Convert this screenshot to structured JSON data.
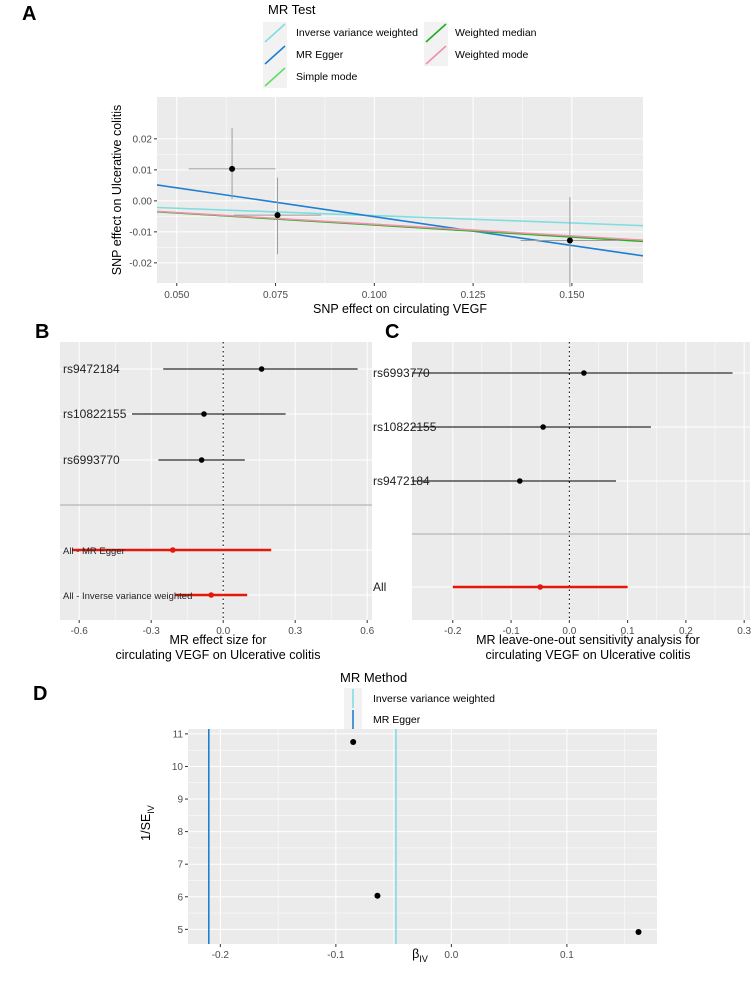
{
  "panels": {
    "A": {
      "letter": "A"
    },
    "B": {
      "letter": "B"
    },
    "C": {
      "letter": "C"
    },
    "D": {
      "letter": "D"
    }
  },
  "chart_data": [
    {
      "panel": "A",
      "type": "scatter",
      "title": "",
      "xlabel": "SNP effect on  circulating VEGF",
      "ylabel": "SNP effect on Ulcerative colitis",
      "xlim": [
        0.045,
        0.168
      ],
      "ylim": [
        -0.0265,
        0.0335
      ],
      "xticks": [
        0.05,
        0.075,
        0.1,
        0.125,
        0.15
      ],
      "xtick_labels": [
        "0.050",
        "0.075",
        "0.100",
        "0.125",
        "0.150"
      ],
      "yticks": [
        -0.02,
        -0.01,
        0,
        0.01,
        0.02
      ],
      "ytick_labels": [
        "-0.02",
        "-0.01",
        "0.00",
        "0.01",
        "0.02"
      ],
      "legend_title": "MR Test",
      "legend_left": [
        "Inverse variance weighted",
        "MR Egger",
        "Simple mode"
      ],
      "legend_right": [
        "Weighted median",
        "Weighted mode"
      ],
      "points": [
        {
          "x": 0.064,
          "y": 0.0103,
          "xerr": 0.011,
          "ylo": 0.0006,
          "yhi": 0.0235
        },
        {
          "x": 0.0755,
          "y": -0.0046,
          "xerr": 0.011,
          "ylo": -0.0172,
          "yhi": 0.0075
        },
        {
          "x": 0.1495,
          "y": -0.0128,
          "xerr": 0.0125,
          "ylo": -0.0278,
          "yhi": 0.0012
        }
      ],
      "series": [
        {
          "name": "Inverse variance weighted",
          "intercept": 0,
          "slope": -0.0476,
          "color": "#7fdde0"
        },
        {
          "name": "MR Egger",
          "intercept": 0.0135,
          "slope": -0.186,
          "color": "#1f7fd0"
        },
        {
          "name": "Simple mode",
          "intercept": 0,
          "slope": -0.078,
          "color": "#5ee05e"
        },
        {
          "name": "Weighted median",
          "intercept": 0,
          "slope": -0.0775,
          "color": "#1fae1f"
        },
        {
          "name": "Weighted mode",
          "intercept": 0,
          "slope": -0.0755,
          "color": "#f08fa8"
        }
      ]
    },
    {
      "panel": "B",
      "type": "forest",
      "xlabel_line1": "MR effect size for",
      "xlabel_line2": "circulating VEGF on Ulcerative colitis",
      "xlim": [
        -0.68,
        0.62
      ],
      "xticks": [
        -0.6,
        -0.3,
        0,
        0.3,
        0.6
      ],
      "xtick_labels": [
        "-0.6",
        "-0.3",
        "0.0",
        "0.3",
        "0.6"
      ],
      "rows": [
        {
          "label": "rs9472184",
          "est": 0.16,
          "lo": -0.25,
          "hi": 0.56,
          "color": "#000000",
          "small": false
        },
        {
          "label": "rs10822155",
          "est": -0.08,
          "lo": -0.38,
          "hi": 0.26,
          "color": "#000000",
          "small": false
        },
        {
          "label": "rs6993770",
          "est": -0.09,
          "lo": -0.27,
          "hi": 0.09,
          "color": "#000000",
          "small": false
        },
        {
          "label": "All - MR Egger",
          "est": -0.21,
          "lo": -0.63,
          "hi": 0.2,
          "color": "#e3170a",
          "small": true
        },
        {
          "label": "All - Inverse variance weighted",
          "est": -0.05,
          "lo": -0.2,
          "hi": 0.1,
          "color": "#e3170a",
          "small": true
        }
      ]
    },
    {
      "panel": "C",
      "type": "forest",
      "xlabel_line1": "MR leave-one-out sensitivity analysis for",
      "xlabel_line2": "circulating VEGF on Ulcerative colitis",
      "xlim": [
        -0.27,
        0.31
      ],
      "xticks": [
        -0.2,
        -0.1,
        0,
        0.1,
        0.2,
        0.3
      ],
      "xtick_labels": [
        "-0.2",
        "-0.1",
        "0.0",
        "0.1",
        "0.2",
        "0.3"
      ],
      "rows": [
        {
          "label": "rs6993770",
          "est": 0.025,
          "lo": -0.3,
          "hi": 0.28,
          "color": "#000000",
          "small": false
        },
        {
          "label": "rs10822155",
          "est": -0.045,
          "lo": -0.3,
          "hi": 0.14,
          "color": "#000000",
          "small": false
        },
        {
          "label": "rs9472184",
          "est": -0.085,
          "lo": -0.3,
          "hi": 0.08,
          "color": "#000000",
          "small": false
        },
        {
          "label": "All",
          "est": -0.05,
          "lo": -0.2,
          "hi": 0.1,
          "color": "#e3170a",
          "small": false
        }
      ]
    },
    {
      "panel": "D",
      "type": "funnel",
      "xlabel": "β",
      "xlabel_sub": "IV",
      "ylabel": "1/SE",
      "ylabel_sub": "IV",
      "xlim": [
        -0.228,
        0.178
      ],
      "ylim": [
        4.55,
        11.15
      ],
      "xticks": [
        -0.2,
        -0.1,
        0,
        0.1
      ],
      "xtick_labels": [
        "-0.2",
        "-0.1",
        "0.0",
        "0.1"
      ],
      "yticks": [
        5,
        6,
        7,
        8,
        9,
        10,
        11
      ],
      "ytick_labels": [
        "5",
        "6",
        "7",
        "8",
        "9",
        "10",
        "11"
      ],
      "legend_title": "MR Method",
      "legend_items": [
        "Inverse variance weighted",
        "MR Egger"
      ],
      "vlines": [
        {
          "name": "Inverse variance weighted",
          "x": -0.048,
          "color": "#7fdde0"
        },
        {
          "name": "MR Egger",
          "x": -0.21,
          "color": "#1f7fd0"
        }
      ],
      "points": [
        {
          "x": -0.085,
          "y": 10.75
        },
        {
          "x": -0.064,
          "y": 6.03
        },
        {
          "x": 0.162,
          "y": 4.92
        }
      ]
    }
  ]
}
